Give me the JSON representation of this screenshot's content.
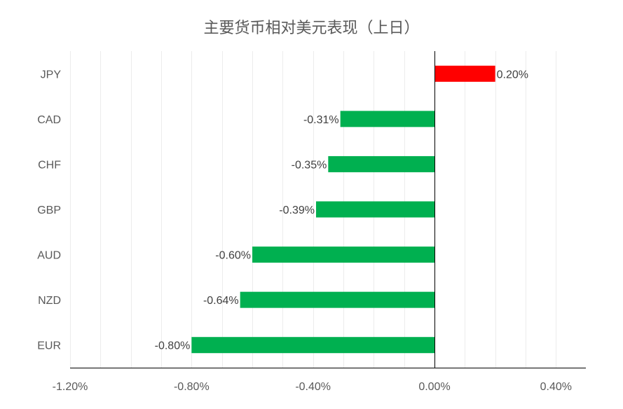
{
  "chart_data": {
    "type": "bar",
    "orientation": "horizontal",
    "title": "主要货币相对美元表现（上日）",
    "categories": [
      "JPY",
      "CAD",
      "CHF",
      "GBP",
      "AUD",
      "NZD",
      "EUR"
    ],
    "values": [
      0.2,
      -0.31,
      -0.35,
      -0.39,
      -0.6,
      -0.64,
      -0.8
    ],
    "data_labels": [
      "0.20%",
      "-0.31%",
      "-0.35%",
      "-0.39%",
      "-0.60%",
      "-0.64%",
      "-0.80%"
    ],
    "xlim": [
      -1.2,
      0.5
    ],
    "xticks": [
      -1.2,
      -0.8,
      -0.4,
      0.0,
      0.4
    ],
    "xtick_labels": [
      "-1.20%",
      "-0.80%",
      "-0.40%",
      "0.00%",
      "0.40%"
    ],
    "grid": true,
    "legend": "none",
    "colors": {
      "positive": "#ff0000",
      "negative": "#00b050",
      "grid": "#ececec",
      "axis": "#000000"
    }
  }
}
